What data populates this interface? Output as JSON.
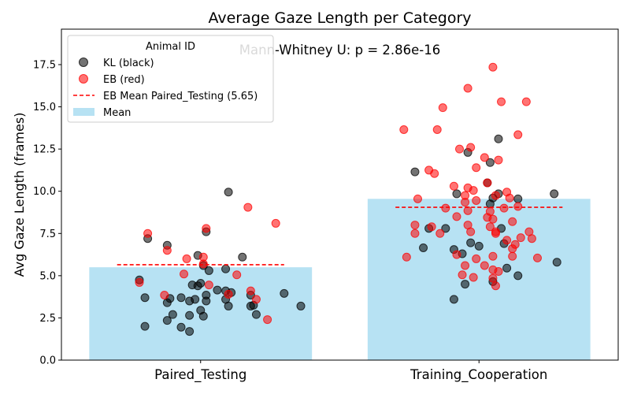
{
  "chart_data": {
    "type": "bar",
    "title": "Average Gaze Length per Category",
    "xlabel": "",
    "ylabel": "Avg Gaze Length (frames)",
    "ylim": [
      0,
      19.6
    ],
    "yticks": [
      0.0,
      2.5,
      5.0,
      7.5,
      10.0,
      12.5,
      15.0,
      17.5
    ],
    "ytick_labels": [
      "0.0",
      "2.5",
      "5.0",
      "7.5",
      "10.0",
      "12.5",
      "15.0",
      "17.5"
    ],
    "grid": false,
    "categories": [
      "Paired_Testing",
      "Training_Cooperation"
    ],
    "bars": {
      "name": "Mean",
      "color": "#87ceeb",
      "values": [
        5.5,
        9.55
      ]
    },
    "eb_mean_line": {
      "name": "EB Mean Paired_Testing (5.65)",
      "color": "#ff0000",
      "values": [
        5.65,
        9.05
      ]
    },
    "annotation": "Mann-Whitney U: p = 2.86e-16",
    "legend": {
      "title": "Animal ID",
      "placement": "top-left",
      "entries": [
        {
          "label": "KL (black)",
          "kind": "marker",
          "color": "#000000"
        },
        {
          "label": "EB (red)",
          "kind": "marker",
          "color": "#ff0000"
        },
        {
          "label": "EB Mean Paired_Testing (5.65)",
          "kind": "dashed-line",
          "color": "#ff0000"
        },
        {
          "label": "Mean",
          "kind": "patch",
          "color": "#87ceeb"
        }
      ]
    },
    "series": [
      {
        "name": "KL (black)",
        "color": "#000000",
        "points": [
          {
            "category": "Paired_Testing",
            "x": -0.22,
            "y": 4.75
          },
          {
            "category": "Paired_Testing",
            "x": -0.2,
            "y": 3.7
          },
          {
            "category": "Paired_Testing",
            "x": -0.2,
            "y": 2.0
          },
          {
            "category": "Paired_Testing",
            "x": -0.19,
            "y": 7.2
          },
          {
            "category": "Paired_Testing",
            "x": -0.12,
            "y": 3.4
          },
          {
            "category": "Paired_Testing",
            "x": -0.12,
            "y": 2.35
          },
          {
            "category": "Paired_Testing",
            "x": -0.12,
            "y": 6.8
          },
          {
            "category": "Paired_Testing",
            "x": -0.11,
            "y": 3.65
          },
          {
            "category": "Paired_Testing",
            "x": -0.1,
            "y": 2.7
          },
          {
            "category": "Paired_Testing",
            "x": -0.07,
            "y": 3.7
          },
          {
            "category": "Paired_Testing",
            "x": -0.07,
            "y": 1.95
          },
          {
            "category": "Paired_Testing",
            "x": -0.04,
            "y": 2.65
          },
          {
            "category": "Paired_Testing",
            "x": -0.04,
            "y": 3.5
          },
          {
            "category": "Paired_Testing",
            "x": -0.04,
            "y": 1.7
          },
          {
            "category": "Paired_Testing",
            "x": -0.03,
            "y": 4.45
          },
          {
            "category": "Paired_Testing",
            "x": -0.02,
            "y": 3.6
          },
          {
            "category": "Paired_Testing",
            "x": -0.01,
            "y": 4.4
          },
          {
            "category": "Paired_Testing",
            "x": -0.01,
            "y": 6.2
          },
          {
            "category": "Paired_Testing",
            "x": 0.0,
            "y": 2.95
          },
          {
            "category": "Paired_Testing",
            "x": 0.0,
            "y": 4.55
          },
          {
            "category": "Paired_Testing",
            "x": 0.01,
            "y": 2.6
          },
          {
            "category": "Paired_Testing",
            "x": 0.01,
            "y": 5.6
          },
          {
            "category": "Paired_Testing",
            "x": 0.02,
            "y": 3.5
          },
          {
            "category": "Paired_Testing",
            "x": 0.02,
            "y": 3.85
          },
          {
            "category": "Paired_Testing",
            "x": 0.02,
            "y": 7.6
          },
          {
            "category": "Paired_Testing",
            "x": 0.03,
            "y": 5.3
          },
          {
            "category": "Paired_Testing",
            "x": 0.06,
            "y": 4.15
          },
          {
            "category": "Paired_Testing",
            "x": 0.09,
            "y": 3.6
          },
          {
            "category": "Paired_Testing",
            "x": 0.09,
            "y": 5.4
          },
          {
            "category": "Paired_Testing",
            "x": 0.09,
            "y": 4.1
          },
          {
            "category": "Paired_Testing",
            "x": 0.1,
            "y": 3.2
          },
          {
            "category": "Paired_Testing",
            "x": 0.1,
            "y": 9.95
          },
          {
            "category": "Paired_Testing",
            "x": 0.11,
            "y": 4.0
          },
          {
            "category": "Paired_Testing",
            "x": 0.15,
            "y": 6.1
          },
          {
            "category": "Paired_Testing",
            "x": 0.18,
            "y": 3.2
          },
          {
            "category": "Paired_Testing",
            "x": 0.18,
            "y": 3.85
          },
          {
            "category": "Paired_Testing",
            "x": 0.19,
            "y": 3.25
          },
          {
            "category": "Paired_Testing",
            "x": 0.2,
            "y": 2.7
          },
          {
            "category": "Paired_Testing",
            "x": 0.3,
            "y": 3.95
          },
          {
            "category": "Paired_Testing",
            "x": 0.36,
            "y": 3.2
          },
          {
            "category": "Training_Cooperation",
            "x": -0.23,
            "y": 11.15
          },
          {
            "category": "Training_Cooperation",
            "x": -0.2,
            "y": 6.65
          },
          {
            "category": "Training_Cooperation",
            "x": -0.18,
            "y": 7.8
          },
          {
            "category": "Training_Cooperation",
            "x": -0.12,
            "y": 7.8
          },
          {
            "category": "Training_Cooperation",
            "x": -0.09,
            "y": 3.6
          },
          {
            "category": "Training_Cooperation",
            "x": -0.09,
            "y": 6.55
          },
          {
            "category": "Training_Cooperation",
            "x": -0.08,
            "y": 9.85
          },
          {
            "category": "Training_Cooperation",
            "x": -0.06,
            "y": 6.3
          },
          {
            "category": "Training_Cooperation",
            "x": -0.05,
            "y": 4.5
          },
          {
            "category": "Training_Cooperation",
            "x": -0.04,
            "y": 12.3
          },
          {
            "category": "Training_Cooperation",
            "x": -0.03,
            "y": 6.95
          },
          {
            "category": "Training_Cooperation",
            "x": 0.0,
            "y": 6.75
          },
          {
            "category": "Training_Cooperation",
            "x": 0.03,
            "y": 10.5
          },
          {
            "category": "Training_Cooperation",
            "x": 0.04,
            "y": 11.7
          },
          {
            "category": "Training_Cooperation",
            "x": 0.04,
            "y": 9.25
          },
          {
            "category": "Training_Cooperation",
            "x": 0.05,
            "y": 4.65
          },
          {
            "category": "Training_Cooperation",
            "x": 0.05,
            "y": 9.6
          },
          {
            "category": "Training_Cooperation",
            "x": 0.07,
            "y": 9.85
          },
          {
            "category": "Training_Cooperation",
            "x": 0.07,
            "y": 13.1
          },
          {
            "category": "Training_Cooperation",
            "x": 0.08,
            "y": 7.8
          },
          {
            "category": "Training_Cooperation",
            "x": 0.09,
            "y": 6.9
          },
          {
            "category": "Training_Cooperation",
            "x": 0.1,
            "y": 5.45
          },
          {
            "category": "Training_Cooperation",
            "x": 0.14,
            "y": 9.55
          },
          {
            "category": "Training_Cooperation",
            "x": 0.14,
            "y": 5.0
          },
          {
            "category": "Training_Cooperation",
            "x": 0.27,
            "y": 9.85
          },
          {
            "category": "Training_Cooperation",
            "x": 0.28,
            "y": 5.8
          }
        ]
      },
      {
        "name": "EB (red)",
        "color": "#ff0000",
        "points": [
          {
            "category": "Paired_Testing",
            "x": -0.22,
            "y": 4.6
          },
          {
            "category": "Paired_Testing",
            "x": -0.19,
            "y": 7.5
          },
          {
            "category": "Paired_Testing",
            "x": -0.13,
            "y": 3.85
          },
          {
            "category": "Paired_Testing",
            "x": -0.12,
            "y": 6.5
          },
          {
            "category": "Paired_Testing",
            "x": -0.06,
            "y": 5.1
          },
          {
            "category": "Paired_Testing",
            "x": -0.05,
            "y": 6.0
          },
          {
            "category": "Paired_Testing",
            "x": 0.01,
            "y": 6.1
          },
          {
            "category": "Paired_Testing",
            "x": 0.01,
            "y": 5.7
          },
          {
            "category": "Paired_Testing",
            "x": 0.02,
            "y": 7.8
          },
          {
            "category": "Paired_Testing",
            "x": 0.03,
            "y": 4.45
          },
          {
            "category": "Paired_Testing",
            "x": 0.1,
            "y": 3.9
          },
          {
            "category": "Paired_Testing",
            "x": 0.13,
            "y": 5.05
          },
          {
            "category": "Paired_Testing",
            "x": 0.17,
            "y": 9.05
          },
          {
            "category": "Paired_Testing",
            "x": 0.18,
            "y": 4.1
          },
          {
            "category": "Paired_Testing",
            "x": 0.2,
            "y": 3.6
          },
          {
            "category": "Paired_Testing",
            "x": 0.24,
            "y": 2.4
          },
          {
            "category": "Paired_Testing",
            "x": 0.27,
            "y": 8.1
          },
          {
            "category": "Training_Cooperation",
            "x": -0.27,
            "y": 13.65
          },
          {
            "category": "Training_Cooperation",
            "x": -0.26,
            "y": 6.1
          },
          {
            "category": "Training_Cooperation",
            "x": -0.23,
            "y": 8.0
          },
          {
            "category": "Training_Cooperation",
            "x": -0.23,
            "y": 7.5
          },
          {
            "category": "Training_Cooperation",
            "x": -0.22,
            "y": 9.55
          },
          {
            "category": "Training_Cooperation",
            "x": -0.18,
            "y": 11.25
          },
          {
            "category": "Training_Cooperation",
            "x": -0.17,
            "y": 7.9
          },
          {
            "category": "Training_Cooperation",
            "x": -0.16,
            "y": 11.05
          },
          {
            "category": "Training_Cooperation",
            "x": -0.15,
            "y": 13.65
          },
          {
            "category": "Training_Cooperation",
            "x": -0.14,
            "y": 7.5
          },
          {
            "category": "Training_Cooperation",
            "x": -0.13,
            "y": 14.95
          },
          {
            "category": "Training_Cooperation",
            "x": -0.12,
            "y": 9.0
          },
          {
            "category": "Training_Cooperation",
            "x": -0.09,
            "y": 10.3
          },
          {
            "category": "Training_Cooperation",
            "x": -0.08,
            "y": 8.5
          },
          {
            "category": "Training_Cooperation",
            "x": -0.08,
            "y": 6.25
          },
          {
            "category": "Training_Cooperation",
            "x": -0.07,
            "y": 12.5
          },
          {
            "category": "Training_Cooperation",
            "x": -0.06,
            "y": 5.05
          },
          {
            "category": "Training_Cooperation",
            "x": -0.05,
            "y": 9.35
          },
          {
            "category": "Training_Cooperation",
            "x": -0.05,
            "y": 9.75
          },
          {
            "category": "Training_Cooperation",
            "x": -0.05,
            "y": 5.6
          },
          {
            "category": "Training_Cooperation",
            "x": -0.04,
            "y": 10.2
          },
          {
            "category": "Training_Cooperation",
            "x": -0.04,
            "y": 16.1
          },
          {
            "category": "Training_Cooperation",
            "x": -0.04,
            "y": 8.85
          },
          {
            "category": "Training_Cooperation",
            "x": -0.04,
            "y": 8.0
          },
          {
            "category": "Training_Cooperation",
            "x": -0.03,
            "y": 7.6
          },
          {
            "category": "Training_Cooperation",
            "x": -0.03,
            "y": 12.6
          },
          {
            "category": "Training_Cooperation",
            "x": -0.02,
            "y": 4.9
          },
          {
            "category": "Training_Cooperation",
            "x": -0.02,
            "y": 10.05
          },
          {
            "category": "Training_Cooperation",
            "x": -0.01,
            "y": 11.4
          },
          {
            "category": "Training_Cooperation",
            "x": -0.01,
            "y": 9.45
          },
          {
            "category": "Training_Cooperation",
            "x": -0.01,
            "y": 6.0
          },
          {
            "category": "Training_Cooperation",
            "x": 0.02,
            "y": 5.6
          },
          {
            "category": "Training_Cooperation",
            "x": 0.02,
            "y": 12.0
          },
          {
            "category": "Training_Cooperation",
            "x": 0.03,
            "y": 10.5
          },
          {
            "category": "Training_Cooperation",
            "x": 0.03,
            "y": 8.45
          },
          {
            "category": "Training_Cooperation",
            "x": 0.04,
            "y": 8.8
          },
          {
            "category": "Training_Cooperation",
            "x": 0.04,
            "y": 7.9
          },
          {
            "category": "Training_Cooperation",
            "x": 0.05,
            "y": 17.35
          },
          {
            "category": "Training_Cooperation",
            "x": 0.05,
            "y": 6.15
          },
          {
            "category": "Training_Cooperation",
            "x": 0.05,
            "y": 5.35
          },
          {
            "category": "Training_Cooperation",
            "x": 0.05,
            "y": 4.85
          },
          {
            "category": "Training_Cooperation",
            "x": 0.05,
            "y": 8.35
          },
          {
            "category": "Training_Cooperation",
            "x": 0.06,
            "y": 7.5
          },
          {
            "category": "Training_Cooperation",
            "x": 0.06,
            "y": 7.6
          },
          {
            "category": "Training_Cooperation",
            "x": 0.06,
            "y": 9.75
          },
          {
            "category": "Training_Cooperation",
            "x": 0.06,
            "y": 4.4
          },
          {
            "category": "Training_Cooperation",
            "x": 0.07,
            "y": 11.85
          },
          {
            "category": "Training_Cooperation",
            "x": 0.07,
            "y": 5.25
          },
          {
            "category": "Training_Cooperation",
            "x": 0.08,
            "y": 15.3
          },
          {
            "category": "Training_Cooperation",
            "x": 0.09,
            "y": 9.0
          },
          {
            "category": "Training_Cooperation",
            "x": 0.1,
            "y": 7.1
          },
          {
            "category": "Training_Cooperation",
            "x": 0.1,
            "y": 9.95
          },
          {
            "category": "Training_Cooperation",
            "x": 0.11,
            "y": 9.6
          },
          {
            "category": "Training_Cooperation",
            "x": 0.12,
            "y": 6.6
          },
          {
            "category": "Training_Cooperation",
            "x": 0.12,
            "y": 6.15
          },
          {
            "category": "Training_Cooperation",
            "x": 0.12,
            "y": 8.2
          },
          {
            "category": "Training_Cooperation",
            "x": 0.13,
            "y": 6.85
          },
          {
            "category": "Training_Cooperation",
            "x": 0.14,
            "y": 9.1
          },
          {
            "category": "Training_Cooperation",
            "x": 0.14,
            "y": 13.35
          },
          {
            "category": "Training_Cooperation",
            "x": 0.15,
            "y": 7.25
          },
          {
            "category": "Training_Cooperation",
            "x": 0.17,
            "y": 15.3
          },
          {
            "category": "Training_Cooperation",
            "x": 0.18,
            "y": 7.6
          },
          {
            "category": "Training_Cooperation",
            "x": 0.19,
            "y": 7.2
          },
          {
            "category": "Training_Cooperation",
            "x": 0.21,
            "y": 6.05
          }
        ]
      }
    ]
  }
}
